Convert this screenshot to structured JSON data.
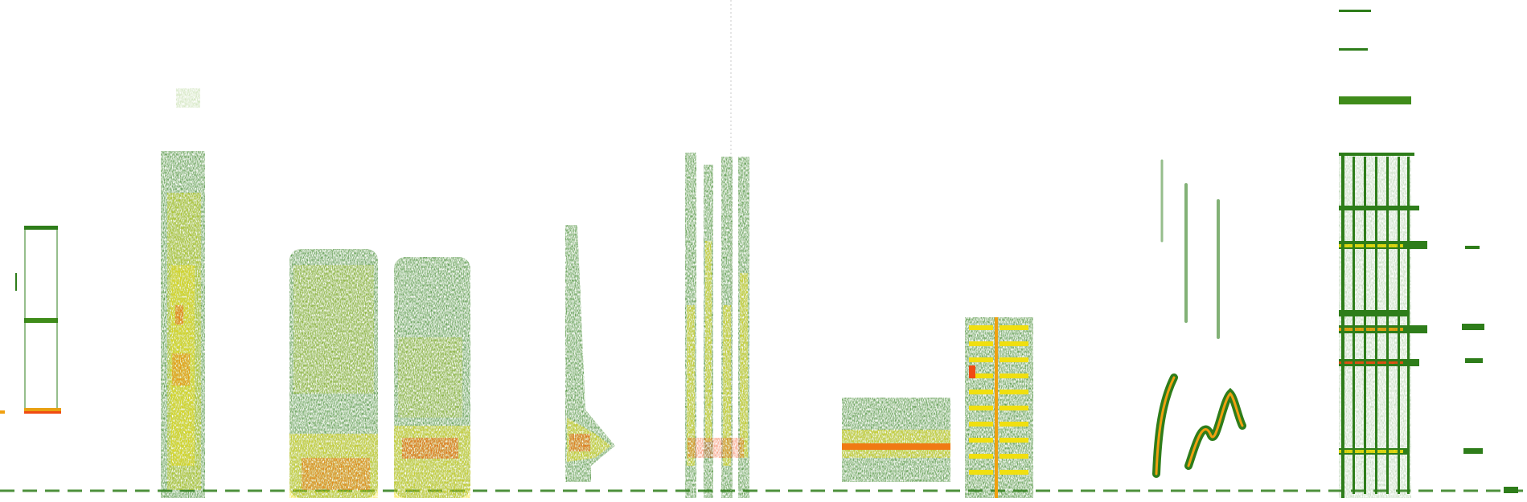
{
  "image": {
    "kind": "spectrogram",
    "background": "#ffffff",
    "palette": {
      "low": "#2e7d1a",
      "mid_low": "#5fa31c",
      "mid": "#c9d21a",
      "high": "#f0df10",
      "peak": "#f04a14"
    }
  }
}
